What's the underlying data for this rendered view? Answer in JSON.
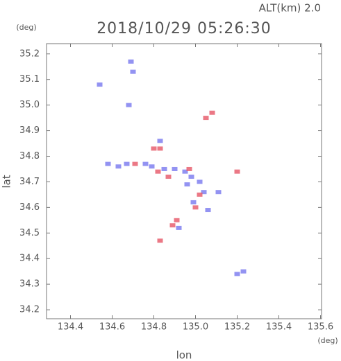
{
  "chart_data": {
    "type": "scatter",
    "annotation": "ALT(km) 2.0",
    "title": "2018/10/29 05:26:30",
    "x_label": "lon",
    "y_label": "lat",
    "x_unit": "(deg)",
    "y_unit": "(deg)",
    "xlim": [
      134.285,
      135.605
    ],
    "ylim": [
      34.165,
      35.24
    ],
    "xticks": [
      134.4,
      134.6,
      134.8,
      {
        "value": 135,
        "label": "135.0"
      },
      135.2,
      135.4,
      135.6
    ],
    "yticks": [
      34.2,
      34.3,
      34.4,
      34.5,
      34.6,
      34.7,
      34.8,
      34.9,
      {
        "value": 35,
        "label": "35.0"
      },
      35.1,
      35.2
    ],
    "series": [
      {
        "color": "#8080f0",
        "x": [
          134.69,
          134.7,
          134.68,
          134.54,
          134.58,
          134.63,
          134.67,
          134.79,
          134.85,
          134.9,
          134.95,
          134.98,
          135.02,
          134.96,
          135.04,
          134.99,
          135.06,
          134.92,
          135.2,
          135.23,
          134.83,
          134.76,
          135.11
        ],
        "values": [
          35.17,
          35.13,
          35.0,
          35.08,
          34.77,
          34.76,
          34.77,
          34.76,
          34.75,
          34.75,
          34.74,
          34.72,
          34.7,
          34.69,
          34.66,
          34.62,
          34.59,
          34.52,
          34.34,
          34.35,
          34.86,
          34.77,
          34.66
        ]
      },
      {
        "color": "#e86070",
        "x": [
          134.8,
          134.83,
          135.05,
          135.08,
          134.82,
          134.87,
          134.89,
          134.91,
          134.83,
          135.2,
          135.02,
          134.97,
          134.71,
          135.0
        ],
        "values": [
          34.83,
          34.83,
          34.95,
          34.97,
          34.74,
          34.72,
          34.53,
          34.55,
          34.47,
          34.74,
          34.65,
          34.75,
          34.77,
          34.6
        ]
      }
    ]
  }
}
